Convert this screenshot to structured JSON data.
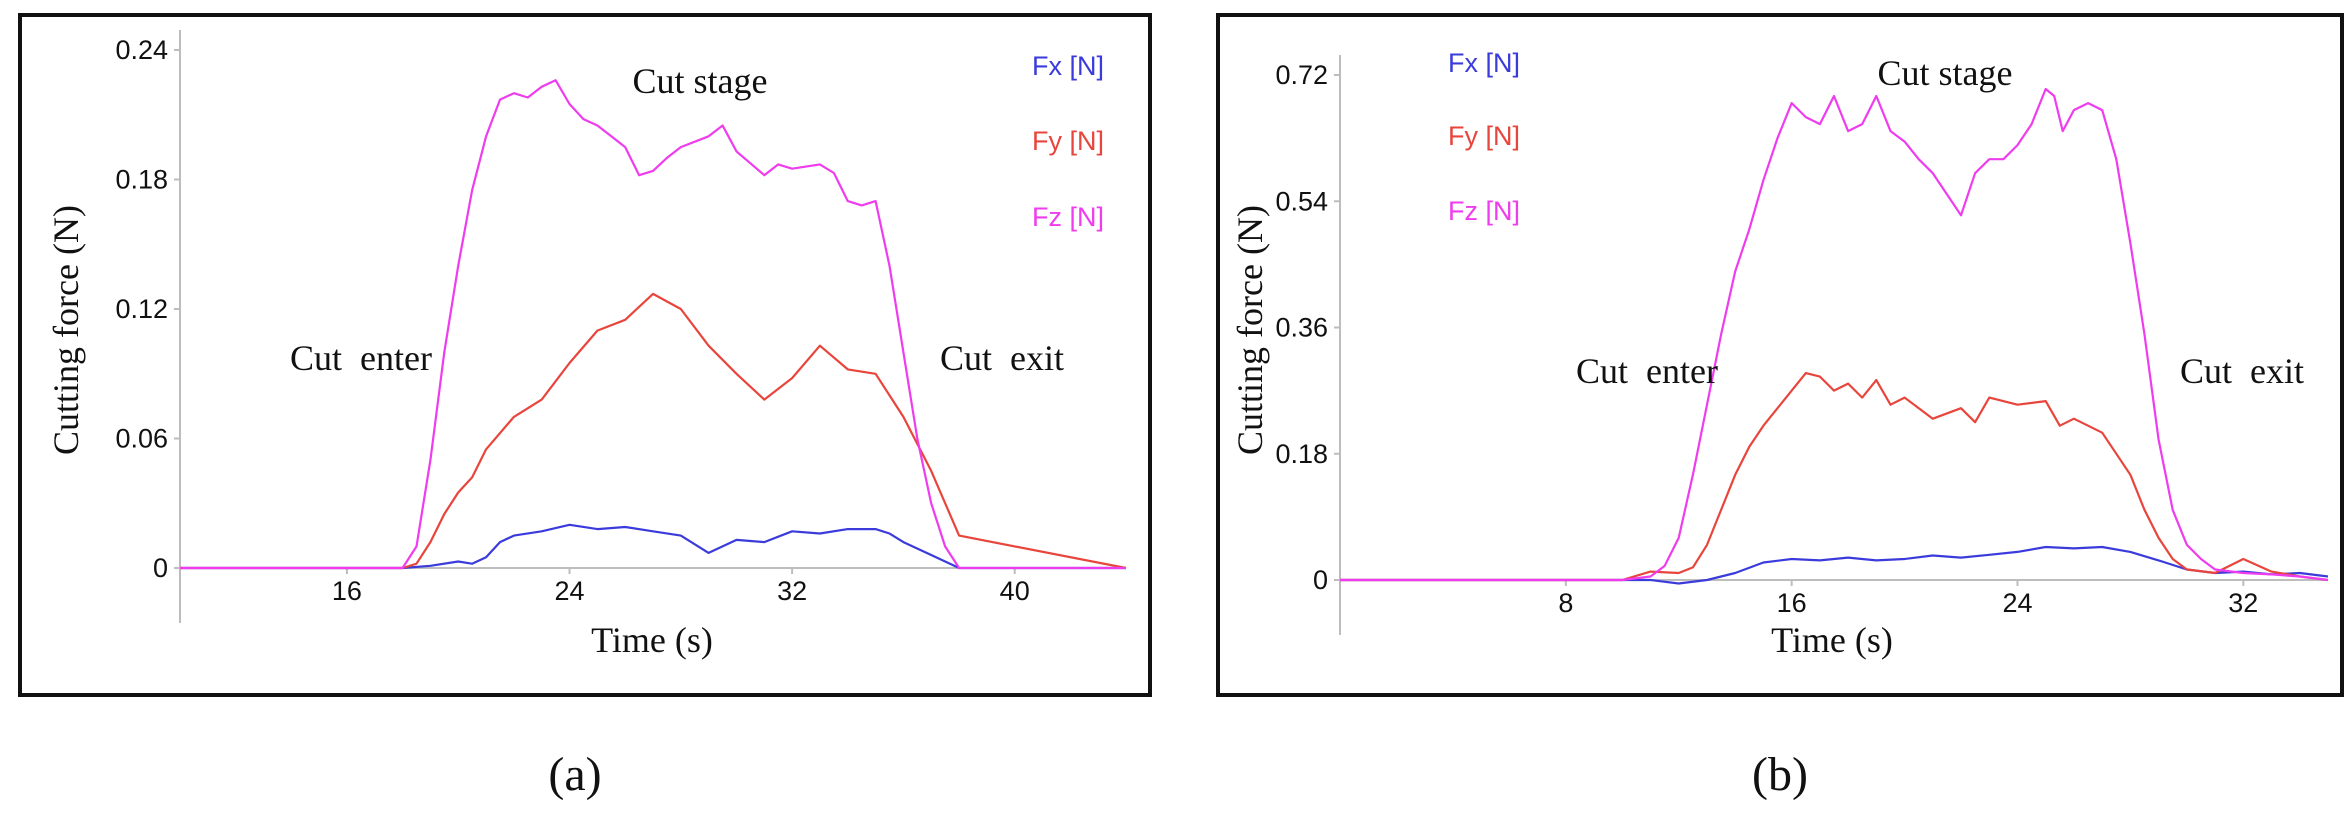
{
  "chart_data": [
    {
      "type": "line",
      "panel": "a",
      "caption": "(a)",
      "xlabel": "Time (s)",
      "ylabel": "Cutting force (N)",
      "xlim": [
        10,
        44
      ],
      "ylim": [
        0,
        0.24
      ],
      "xticks": [
        16,
        24,
        32,
        40
      ],
      "yticks": [
        0,
        0.06,
        0.12,
        0.18,
        0.24
      ],
      "ytick_labels": [
        "0",
        "0.06",
        "0.12",
        "0.18",
        "0.24"
      ],
      "annotations": {
        "enter": "Cut  enter",
        "stage": "Cut stage",
        "exit": "Cut  exit"
      },
      "series": [
        {
          "name": "Fx [N]",
          "color": "#3b3bdc",
          "x": [
            10,
            18,
            19,
            20,
            20.5,
            21,
            21.5,
            22,
            23,
            24,
            25,
            26,
            27,
            28,
            29,
            30,
            31,
            32,
            33,
            34,
            35,
            35.5,
            36,
            37,
            38,
            44
          ],
          "y": [
            0,
            0,
            0.001,
            0.003,
            0.002,
            0.005,
            0.012,
            0.015,
            0.017,
            0.02,
            0.018,
            0.019,
            0.017,
            0.015,
            0.007,
            0.013,
            0.012,
            0.017,
            0.016,
            0.018,
            0.018,
            0.016,
            0.012,
            0.006,
            0.0,
            0
          ]
        },
        {
          "name": "Fy [N]",
          "color": "#e8453c",
          "x": [
            10,
            18,
            18.5,
            19,
            19.5,
            20,
            20.5,
            21,
            22,
            23,
            24,
            25,
            26,
            27,
            28,
            29,
            30,
            31,
            32,
            33,
            34,
            35,
            36,
            37,
            38,
            44
          ],
          "y": [
            0,
            0,
            0.002,
            0.012,
            0.025,
            0.035,
            0.042,
            0.055,
            0.07,
            0.078,
            0.095,
            0.11,
            0.115,
            0.127,
            0.12,
            0.103,
            0.09,
            0.078,
            0.088,
            0.103,
            0.092,
            0.09,
            0.07,
            0.045,
            0.015,
            0
          ]
        },
        {
          "name": "Fz [N]",
          "color": "#ee3cee",
          "x": [
            10,
            18,
            18.5,
            19,
            19.5,
            20,
            20.5,
            21,
            21.5,
            22,
            22.5,
            23,
            23.5,
            24,
            24.5,
            25,
            25.5,
            26,
            26.5,
            27,
            27.5,
            28,
            29,
            29.5,
            30,
            31,
            31.5,
            32,
            33,
            33.5,
            34,
            34.5,
            35,
            35.5,
            36,
            36.5,
            37,
            37.5,
            38,
            44
          ],
          "y": [
            0,
            0,
            0.01,
            0.05,
            0.1,
            0.14,
            0.175,
            0.2,
            0.217,
            0.22,
            0.218,
            0.223,
            0.226,
            0.215,
            0.208,
            0.205,
            0.2,
            0.195,
            0.182,
            0.184,
            0.19,
            0.195,
            0.2,
            0.205,
            0.193,
            0.182,
            0.187,
            0.185,
            0.187,
            0.183,
            0.17,
            0.168,
            0.17,
            0.14,
            0.1,
            0.06,
            0.03,
            0.01,
            0,
            0
          ]
        }
      ]
    },
    {
      "type": "line",
      "panel": "b",
      "caption": "(b)",
      "xlabel": "Time (s)",
      "ylabel": "Cutting force (N)",
      "xlim": [
        0,
        35
      ],
      "ylim": [
        0,
        0.72
      ],
      "xticks": [
        8,
        16,
        24,
        32
      ],
      "yticks": [
        0,
        0.18,
        0.36,
        0.54,
        0.72
      ],
      "ytick_labels": [
        "0",
        "0.18",
        "0.36",
        "0.54",
        "0.72"
      ],
      "annotations": {
        "enter": "Cut  enter",
        "stage": "Cut stage",
        "exit": "Cut  exit"
      },
      "series": [
        {
          "name": "Fx [N]",
          "color": "#3b3bdc",
          "x": [
            0,
            11,
            12,
            13,
            14,
            15,
            16,
            17,
            18,
            19,
            20,
            21,
            22,
            23,
            24,
            25,
            26,
            27,
            28,
            29,
            30,
            31,
            32,
            33,
            34,
            35
          ],
          "y": [
            0,
            0,
            -0.005,
            0,
            0.01,
            0.025,
            0.03,
            0.028,
            0.032,
            0.028,
            0.03,
            0.035,
            0.032,
            0.036,
            0.04,
            0.047,
            0.045,
            0.047,
            0.04,
            0.028,
            0.015,
            0.01,
            0.012,
            0.008,
            0.01,
            0.005
          ]
        },
        {
          "name": "Fy [N]",
          "color": "#e8453c",
          "x": [
            0,
            10,
            11,
            12,
            12.5,
            13,
            13.5,
            14,
            14.5,
            15,
            15.5,
            16,
            16.5,
            17,
            17.5,
            18,
            18.5,
            19,
            19.5,
            20,
            21,
            22,
            22.5,
            23,
            24,
            25,
            25.5,
            26,
            27,
            28,
            28.5,
            29,
            29.5,
            30,
            31,
            32,
            33,
            34,
            35
          ],
          "y": [
            0,
            0,
            0.012,
            0.01,
            0.018,
            0.05,
            0.1,
            0.15,
            0.19,
            0.22,
            0.245,
            0.27,
            0.295,
            0.29,
            0.27,
            0.28,
            0.26,
            0.285,
            0.25,
            0.26,
            0.23,
            0.245,
            0.225,
            0.26,
            0.25,
            0.255,
            0.22,
            0.23,
            0.21,
            0.15,
            0.1,
            0.06,
            0.03,
            0.015,
            0.01,
            0.03,
            0.012,
            0.005,
            0
          ]
        },
        {
          "name": "Fz [N]",
          "color": "#ee3cee",
          "x": [
            0,
            10,
            11,
            11.5,
            12,
            12.5,
            13,
            13.5,
            14,
            14.5,
            15,
            15.5,
            16,
            16.5,
            17,
            17.5,
            18,
            18.5,
            19,
            19.5,
            20,
            20.5,
            21,
            21.5,
            22,
            22.5,
            23,
            23.5,
            24,
            24.5,
            25,
            25.3,
            25.6,
            26,
            26.5,
            27,
            27.5,
            28,
            28.5,
            29,
            29.5,
            30,
            30.5,
            31,
            32,
            33,
            34,
            35
          ],
          "y": [
            0,
            0,
            0.005,
            0.02,
            0.06,
            0.15,
            0.25,
            0.35,
            0.44,
            0.5,
            0.57,
            0.63,
            0.68,
            0.66,
            0.65,
            0.69,
            0.64,
            0.65,
            0.69,
            0.64,
            0.625,
            0.6,
            0.58,
            0.55,
            0.52,
            0.58,
            0.6,
            0.6,
            0.62,
            0.65,
            0.7,
            0.69,
            0.64,
            0.67,
            0.68,
            0.67,
            0.6,
            0.48,
            0.35,
            0.2,
            0.1,
            0.05,
            0.03,
            0.015,
            0.01,
            0.008,
            0.005,
            0
          ]
        }
      ]
    }
  ]
}
